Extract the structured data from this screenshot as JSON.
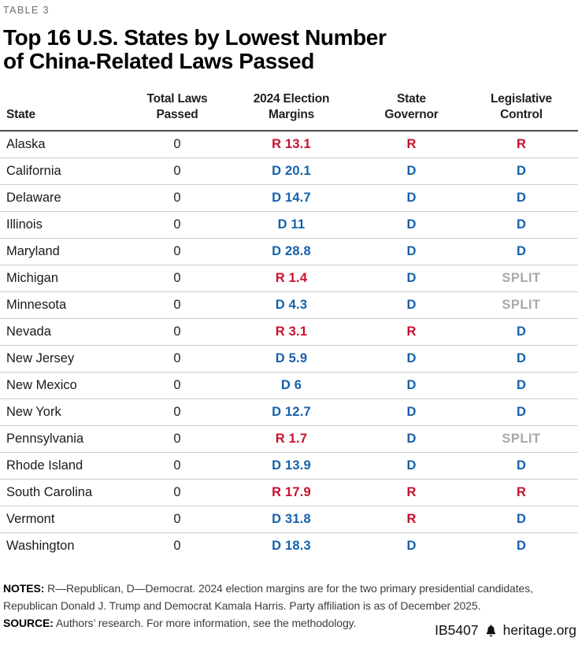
{
  "kicker": "TABLE 3",
  "title_line1": "Top 16 U.S. States by Lowest Number",
  "title_line2": "of China-Related Laws Passed",
  "columns": [
    "State",
    "Total Laws\nPassed",
    "2024 Election\nMargins",
    "State\nGovernor",
    "Legislative\nControl"
  ],
  "rows": [
    {
      "state": "Alaska",
      "total_laws": "0",
      "margin": "R 13.1",
      "governor": "R",
      "control": "R"
    },
    {
      "state": "California",
      "total_laws": "0",
      "margin": "D 20.1",
      "governor": "D",
      "control": "D"
    },
    {
      "state": "Delaware",
      "total_laws": "0",
      "margin": "D 14.7",
      "governor": "D",
      "control": "D"
    },
    {
      "state": "Illinois",
      "total_laws": "0",
      "margin": "D 11",
      "governor": "D",
      "control": "D"
    },
    {
      "state": "Maryland",
      "total_laws": "0",
      "margin": "D 28.8",
      "governor": "D",
      "control": "D"
    },
    {
      "state": "Michigan",
      "total_laws": "0",
      "margin": "R 1.4",
      "governor": "D",
      "control": "SPLIT"
    },
    {
      "state": "Minnesota",
      "total_laws": "0",
      "margin": "D 4.3",
      "governor": "D",
      "control": "SPLIT"
    },
    {
      "state": "Nevada",
      "total_laws": "0",
      "margin": "R 3.1",
      "governor": "R",
      "control": "D"
    },
    {
      "state": "New Jersey",
      "total_laws": "0",
      "margin": "D 5.9",
      "governor": "D",
      "control": "D"
    },
    {
      "state": "New Mexico",
      "total_laws": "0",
      "margin": "D 6",
      "governor": "D",
      "control": "D"
    },
    {
      "state": "New York",
      "total_laws": "0",
      "margin": "D 12.7",
      "governor": "D",
      "control": "D"
    },
    {
      "state": "Pennsylvania",
      "total_laws": "0",
      "margin": "R 1.7",
      "governor": "D",
      "control": "SPLIT"
    },
    {
      "state": "Rhode Island",
      "total_laws": "0",
      "margin": "D 13.9",
      "governor": "D",
      "control": "D"
    },
    {
      "state": "South Carolina",
      "total_laws": "0",
      "margin": "R 17.9",
      "governor": "R",
      "control": "R"
    },
    {
      "state": "Vermont",
      "total_laws": "0",
      "margin": "D 31.8",
      "governor": "R",
      "control": "D"
    },
    {
      "state": "Washington",
      "total_laws": "0",
      "margin": "D 18.3",
      "governor": "D",
      "control": "D"
    }
  ],
  "notes": {
    "label": "NOTES:",
    "lines": [
      "R—Republican, D—Democrat. 2024 election margins are for the two primary presidential candidates,",
      "Republican Donald J. Trump and Democrat Kamala Harris. Party affiliation is as of December 2025."
    ]
  },
  "source": {
    "label": "SOURCE:",
    "text": "Authors’ research. For more information, see the methodology."
  },
  "footer": {
    "report_id": "IB5407",
    "site": "heritage.org",
    "icon": "heritage-bell"
  },
  "colors": {
    "republican": "#C8102E",
    "democrat": "#1561AD",
    "split": "#A7A9AC",
    "text": "#231F20",
    "kicker_gray": "#6D6E71",
    "rule_dark": "#4D4D4F",
    "rule_light": "#CCCCCC"
  }
}
